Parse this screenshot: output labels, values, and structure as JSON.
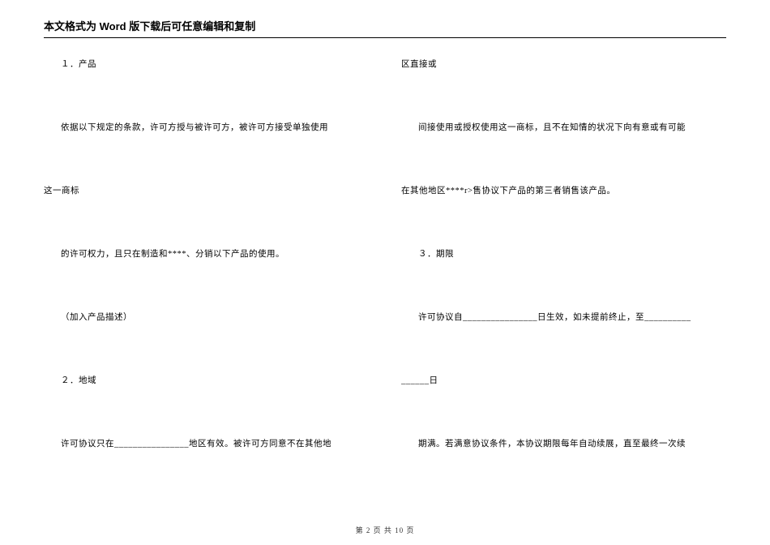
{
  "header": {
    "title": "本文格式为 Word 版下载后可任意编辑和复制"
  },
  "leftColumn": {
    "p1": "１．产品",
    "p2": "依据以下规定的条款，许可方授与被许可方，被许可方接受单独使用",
    "p3": "这一商标",
    "p4": "的许可权力，且只在制造和****、分销以下产品的使用。",
    "p5": "（加入产品描述）",
    "p6": "２．地域",
    "p7": "许可协议只在________________地区有效。被许可方同意不在其他地"
  },
  "rightColumn": {
    "p1": "区直接或",
    "p2": "间接使用或授权使用这一商标，且不在知情的状况下向有意或有可能",
    "p3": "在其他地区****r>售协议下产品的第三者销售该产品。",
    "p4": "３．期限",
    "p5": "许可协议自________________日生效，如未提前终止，至__________",
    "p6": "______日",
    "p7": "期满。若满意协议条件，本协议期限每年自动续展，直至最终一次续"
  },
  "footer": {
    "pageInfo": "第 2 页 共 10 页"
  },
  "style": {
    "background": "#ffffff",
    "textColor": "#000000",
    "headerFontSize": 13,
    "bodyFontSize": 10.5,
    "footerFontSize": 9
  }
}
